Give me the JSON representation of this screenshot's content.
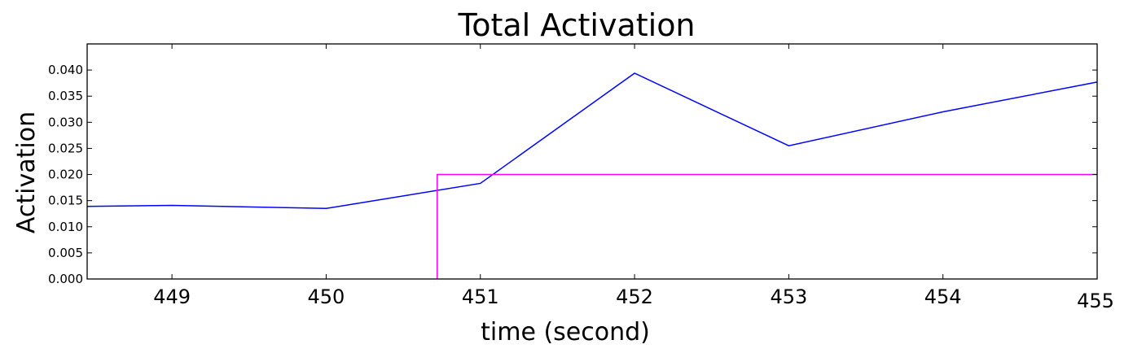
{
  "chart_data": {
    "type": "line",
    "title": "Total Activation",
    "xlabel": "time (second)",
    "ylabel": "Activation",
    "xlim": [
      448.45,
      455
    ],
    "ylim": [
      0,
      0.045
    ],
    "x_ticks": [
      449,
      450,
      451,
      452,
      453,
      454,
      455
    ],
    "x_tick_labels": [
      "449",
      "450",
      "451",
      "452",
      "453",
      "454",
      "455"
    ],
    "y_ticks": [
      0,
      0.005,
      0.01,
      0.015,
      0.02,
      0.025,
      0.03,
      0.035,
      0.04
    ],
    "y_tick_labels": [
      "0.000",
      "0.005",
      "0.010",
      "0.015",
      "0.020",
      "0.025",
      "0.030",
      "0.035",
      "0.040"
    ],
    "grid": false,
    "series": [
      {
        "color": "#0000ff",
        "x": [
          448.45,
          449,
          450,
          451,
          452,
          453,
          454,
          455
        ],
        "y": [
          0.0139,
          0.0141,
          0.0135,
          0.0183,
          0.0394,
          0.0255,
          0.032,
          0.0377
        ]
      },
      {
        "color": "#ff00ff",
        "x": [
          450.72,
          450.72,
          455
        ],
        "y": [
          0,
          0.02,
          0.02
        ]
      }
    ]
  }
}
